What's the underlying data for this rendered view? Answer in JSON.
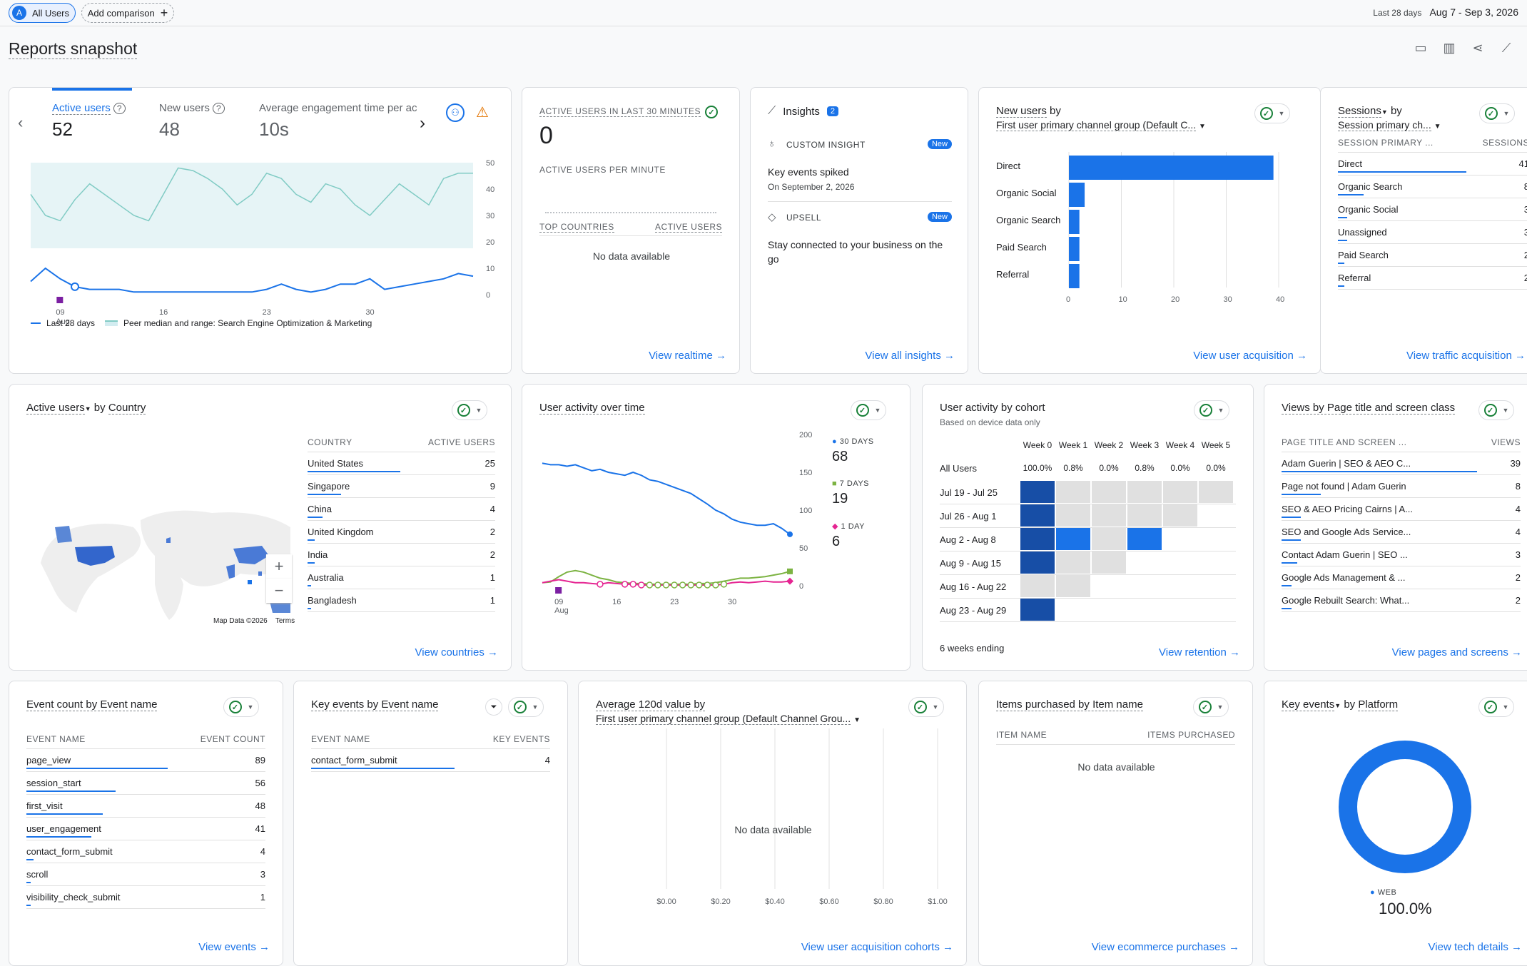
{
  "topbar": {
    "all_users": "All Users",
    "all_users_initial": "A",
    "add_comparison": "Add comparison",
    "date_label": "Last 28 days",
    "date_range": "Aug 7 - Sep 3, 2026"
  },
  "page": {
    "title": "Reports snapshot"
  },
  "overview": {
    "metrics": [
      {
        "label": "Active users",
        "value": "52"
      },
      {
        "label": "New users",
        "value": "48"
      },
      {
        "label": "Average engagement time per ac",
        "value": "10s"
      }
    ],
    "y_ticks": [
      "50",
      "40",
      "30",
      "20",
      "10",
      "0"
    ],
    "x_ticks": [
      "09",
      "16",
      "23",
      "30"
    ],
    "x_month": "Aug",
    "legend_last": "Last 28 days",
    "legend_peer": "Peer median and range: Search Engine Optimization & Marketing",
    "chart_data": {
      "type": "line",
      "x_labels": [
        "09 Aug",
        "16",
        "23",
        "30"
      ],
      "series": [
        {
          "name": "Last 28 days",
          "values": [
            5,
            10,
            6,
            3,
            2,
            2,
            2,
            1,
            1,
            1,
            1,
            1,
            1,
            1,
            1,
            1,
            2,
            4,
            2,
            1,
            2,
            4,
            4,
            6,
            2,
            3,
            4,
            5,
            6,
            8,
            7
          ]
        },
        {
          "name": "Peer median and range: Search Engine Optimization & Marketing",
          "values": [
            38,
            30,
            28,
            36,
            42,
            38,
            34,
            30,
            28,
            38,
            48,
            47,
            44,
            40,
            34,
            38,
            46,
            44,
            38,
            35,
            42,
            40,
            34,
            30,
            36,
            42,
            38,
            34,
            44,
            46,
            46
          ]
        }
      ],
      "ylim": [
        0,
        50
      ]
    }
  },
  "realtime": {
    "title": "ACTIVE USERS IN LAST 30 MINUTES",
    "value": "0",
    "per_minute": "ACTIVE USERS PER MINUTE",
    "col1": "TOP COUNTRIES",
    "col2": "ACTIVE USERS",
    "empty": "No data available",
    "link": "View realtime"
  },
  "insights": {
    "title": "Insights",
    "count": "2",
    "items": [
      {
        "type": "CUSTOM INSIGHT",
        "badge": "New",
        "title": "Key events spiked",
        "date": "On September 2, 2026"
      },
      {
        "type": "UPSELL",
        "badge": "New",
        "title": "Stay connected to your business on the go"
      }
    ],
    "link": "View all insights"
  },
  "new_users": {
    "title_a": "New users",
    "title_b": "by",
    "dim": "First user primary channel group (Default C...",
    "link": "View user acquisition",
    "x_ticks": [
      "0",
      "10",
      "20",
      "30",
      "40"
    ],
    "chart_data": {
      "type": "bar",
      "categories": [
        "Direct",
        "Organic Social",
        "Organic Search",
        "Paid Search",
        "Referral"
      ],
      "values": [
        39,
        3,
        2,
        2,
        2
      ],
      "xlim": [
        0,
        40
      ]
    }
  },
  "sessions": {
    "title_a": "Sessions",
    "title_b": "by",
    "dim": "Session primary ch...",
    "col1": "SESSION PRIMARY ...",
    "col2": "SESSIONS",
    "link": "View traffic acquisition",
    "rows": [
      {
        "name": "Direct",
        "value": "41",
        "pct": 1.0
      },
      {
        "name": "Organic Search",
        "value": "8",
        "pct": 0.2
      },
      {
        "name": "Organic Social",
        "value": "3",
        "pct": 0.07
      },
      {
        "name": "Unassigned",
        "value": "3",
        "pct": 0.07
      },
      {
        "name": "Paid Search",
        "value": "2",
        "pct": 0.05
      },
      {
        "name": "Referral",
        "value": "2",
        "pct": 0.05
      }
    ]
  },
  "country": {
    "title_a": "Active users",
    "title_b": "by",
    "title_c": "Country",
    "col1": "COUNTRY",
    "col2": "ACTIVE USERS",
    "map_data": "Map Data ©2026",
    "terms": "Terms",
    "zoom_in": "+",
    "zoom_out": "−",
    "link": "View countries",
    "rows": [
      {
        "name": "United States",
        "value": "25",
        "pct": 1.0
      },
      {
        "name": "Singapore",
        "value": "9",
        "pct": 0.36
      },
      {
        "name": "China",
        "value": "4",
        "pct": 0.16
      },
      {
        "name": "United Kingdom",
        "value": "2",
        "pct": 0.08
      },
      {
        "name": "India",
        "value": "2",
        "pct": 0.08
      },
      {
        "name": "Australia",
        "value": "1",
        "pct": 0.04
      },
      {
        "name": "Bangladesh",
        "value": "1",
        "pct": 0.04
      }
    ]
  },
  "activity": {
    "title": "User activity over time",
    "y_ticks": [
      "200",
      "150",
      "100",
      "50",
      "0"
    ],
    "x_ticks": [
      "09",
      "16",
      "23",
      "30"
    ],
    "x_month": "Aug",
    "legend": [
      {
        "label": "30 DAYS",
        "value": "68",
        "color": "#1a73e8"
      },
      {
        "label": "7 DAYS",
        "value": "19",
        "color": "#7cb342"
      },
      {
        "label": "1 DAY",
        "value": "6",
        "color": "#e52592"
      }
    ],
    "chart_data": {
      "type": "line",
      "ylim": [
        0,
        200
      ],
      "series": [
        {
          "name": "30 DAYS",
          "values": [
            162,
            160,
            160,
            158,
            160,
            156,
            152,
            154,
            150,
            148,
            146,
            150,
            146,
            140,
            138,
            134,
            130,
            126,
            122,
            115,
            108,
            100,
            95,
            88,
            84,
            82,
            80,
            80,
            82,
            76,
            68
          ]
        },
        {
          "name": "7 DAYS",
          "values": [
            4,
            5,
            12,
            18,
            20,
            18,
            14,
            10,
            8,
            5,
            4,
            3,
            3,
            2,
            2,
            2,
            2,
            2,
            2,
            3,
            3,
            4,
            6,
            8,
            10,
            10,
            11,
            12,
            14,
            16,
            19
          ]
        },
        {
          "name": "1 DAY",
          "values": [
            4,
            6,
            8,
            6,
            4,
            4,
            3,
            2,
            4,
            3,
            2,
            2,
            1,
            1,
            1,
            1,
            1,
            1,
            1,
            1,
            1,
            1,
            2,
            4,
            5,
            4,
            5,
            6,
            5,
            5,
            6
          ]
        }
      ]
    }
  },
  "cohort": {
    "title": "User activity by cohort",
    "subtitle": "Based on device data only",
    "weeks": [
      "Week 0",
      "Week 1",
      "Week 2",
      "Week 3",
      "Week 4",
      "Week 5"
    ],
    "all_label": "All Users",
    "all_values": [
      "100.0%",
      "0.8%",
      "0.0%",
      "0.8%",
      "0.0%",
      "0.0%"
    ],
    "rows": [
      "Jul 19 - Jul 25",
      "Jul 26 - Aug 1",
      "Aug 2 - Aug 8",
      "Aug 9 - Aug 15",
      "Aug 16 - Aug 22",
      "Aug 23 - Aug 29"
    ],
    "footer": "6 weeks ending",
    "link": "View retention"
  },
  "views": {
    "title": "Views by Page title and screen class",
    "col1": "PAGE TITLE AND SCREEN ...",
    "col2": "VIEWS",
    "link": "View pages and screens",
    "rows": [
      {
        "name": "Adam Guerin | SEO & AEO C...",
        "value": "39",
        "pct": 1.0
      },
      {
        "name": "Page not found | Adam Guerin",
        "value": "8",
        "pct": 0.2
      },
      {
        "name": "SEO & AEO Pricing Cairns | A...",
        "value": "4",
        "pct": 0.1
      },
      {
        "name": "SEO and Google Ads Service...",
        "value": "4",
        "pct": 0.1
      },
      {
        "name": "Contact Adam Guerin | SEO ...",
        "value": "3",
        "pct": 0.08
      },
      {
        "name": "Google Ads Management & ...",
        "value": "2",
        "pct": 0.05
      },
      {
        "name": "Google Rebuilt Search: What...",
        "value": "2",
        "pct": 0.05
      }
    ]
  },
  "events": {
    "title": "Event count by Event name",
    "col1": "EVENT NAME",
    "col2": "EVENT COUNT",
    "link": "View events",
    "rows": [
      {
        "name": "page_view",
        "value": "89",
        "pct": 1.0
      },
      {
        "name": "session_start",
        "value": "56",
        "pct": 0.63
      },
      {
        "name": "first_visit",
        "value": "48",
        "pct": 0.54
      },
      {
        "name": "user_engagement",
        "value": "41",
        "pct": 0.46
      },
      {
        "name": "contact_form_submit",
        "value": "4",
        "pct": 0.05
      },
      {
        "name": "scroll",
        "value": "3",
        "pct": 0.03
      },
      {
        "name": "visibility_check_submit",
        "value": "1",
        "pct": 0.01
      }
    ]
  },
  "key_events": {
    "title": "Key events by Event name",
    "col1": "EVENT NAME",
    "col2": "KEY EVENTS",
    "rows": [
      {
        "name": "contact_form_submit",
        "value": "4",
        "pct": 1.0
      }
    ]
  },
  "avg120": {
    "title": "Average 120d value by",
    "dim": "First user primary channel group (Default Channel Grou...",
    "empty": "No data available",
    "x_ticks": [
      "$0.00",
      "$0.20",
      "$0.40",
      "$0.60",
      "$0.80",
      "$1.00"
    ],
    "link": "View user acquisition cohorts"
  },
  "items": {
    "title": "Items purchased by Item name",
    "col1": "ITEM NAME",
    "col2": "ITEMS PURCHASED",
    "empty": "No data available",
    "link": "View ecommerce purchases"
  },
  "platform": {
    "title_a": "Key events",
    "title_b": "by",
    "title_c": "Platform",
    "legend": "WEB",
    "value": "100.0%",
    "link": "View tech details",
    "chart_data": {
      "type": "pie",
      "categories": [
        "WEB"
      ],
      "values": [
        100.0
      ]
    }
  }
}
